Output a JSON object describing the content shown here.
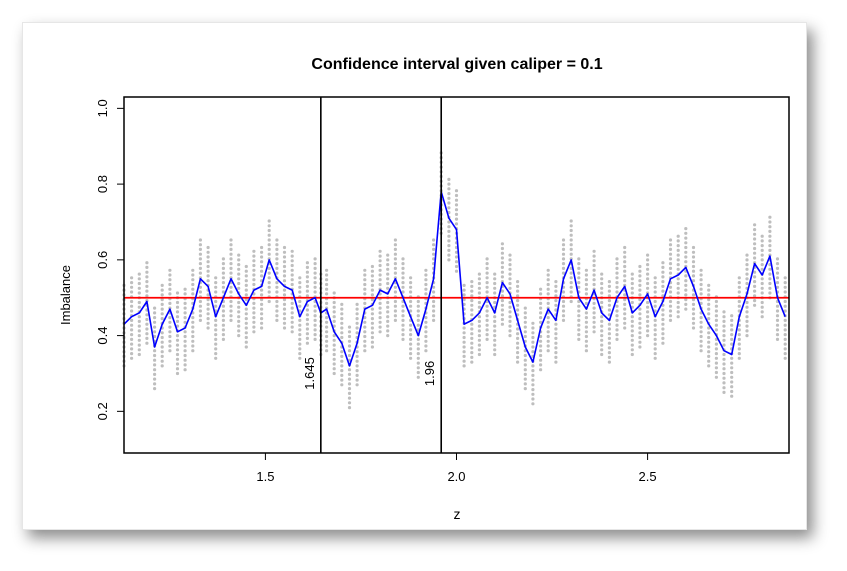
{
  "chart_data": {
    "type": "line",
    "title": "Confidence interval given caliper =  0.1",
    "xlabel": "z",
    "ylabel": "Imbalance",
    "xlim": [
      1.13,
      2.87
    ],
    "ylim": [
      0.09,
      1.03
    ],
    "x_ticks": [
      {
        "value": 1.5,
        "label": "1.5"
      },
      {
        "value": 2.0,
        "label": "2.0"
      },
      {
        "value": 2.5,
        "label": "2.5"
      }
    ],
    "y_ticks": [
      {
        "value": 0.2,
        "label": "0.2"
      },
      {
        "value": 0.4,
        "label": "0.4"
      },
      {
        "value": 0.6,
        "label": "0.6"
      },
      {
        "value": 0.8,
        "label": "0.8"
      },
      {
        "value": 1.0,
        "label": "1.0"
      }
    ],
    "grid": false,
    "reference_line": {
      "y": 0.5,
      "color": "#ff0000"
    },
    "vertical_lines": [
      {
        "x": 1.645,
        "label": "1.645"
      },
      {
        "x": 1.96,
        "label": "1.96"
      }
    ],
    "band_half_width": 0.11,
    "colors": {
      "line": "#0000ff",
      "band_dots": "#bebebe",
      "reference": "#ff0000",
      "axes": "#000000"
    },
    "series": [
      {
        "x": [
          1.13,
          1.15,
          1.17,
          1.19,
          1.21,
          1.23,
          1.25,
          1.27,
          1.29,
          1.31,
          1.33,
          1.35,
          1.37,
          1.39,
          1.41,
          1.43,
          1.45,
          1.47,
          1.49,
          1.51,
          1.53,
          1.55,
          1.57,
          1.59,
          1.61,
          1.63,
          1.645,
          1.66,
          1.68,
          1.7,
          1.72,
          1.74,
          1.76,
          1.78,
          1.8,
          1.82,
          1.84,
          1.86,
          1.88,
          1.9,
          1.92,
          1.94,
          1.96,
          1.98,
          2.0,
          2.02,
          2.04,
          2.06,
          2.08,
          2.1,
          2.12,
          2.14,
          2.16,
          2.18,
          2.2,
          2.22,
          2.24,
          2.26,
          2.28,
          2.3,
          2.32,
          2.34,
          2.36,
          2.38,
          2.4,
          2.42,
          2.44,
          2.46,
          2.48,
          2.5,
          2.52,
          2.54,
          2.56,
          2.58,
          2.6,
          2.62,
          2.64,
          2.66,
          2.68,
          2.7,
          2.72,
          2.74,
          2.76,
          2.78,
          2.8,
          2.82,
          2.84,
          2.86
        ],
        "y": [
          0.43,
          0.45,
          0.46,
          0.49,
          0.37,
          0.43,
          0.47,
          0.41,
          0.42,
          0.47,
          0.55,
          0.53,
          0.45,
          0.5,
          0.55,
          0.51,
          0.48,
          0.52,
          0.53,
          0.6,
          0.55,
          0.53,
          0.52,
          0.45,
          0.49,
          0.5,
          0.46,
          0.47,
          0.41,
          0.38,
          0.32,
          0.38,
          0.47,
          0.48,
          0.52,
          0.51,
          0.55,
          0.5,
          0.45,
          0.4,
          0.47,
          0.55,
          0.78,
          0.71,
          0.68,
          0.43,
          0.44,
          0.46,
          0.5,
          0.46,
          0.54,
          0.51,
          0.44,
          0.37,
          0.33,
          0.42,
          0.47,
          0.44,
          0.55,
          0.6,
          0.5,
          0.47,
          0.52,
          0.46,
          0.44,
          0.5,
          0.53,
          0.46,
          0.48,
          0.51,
          0.45,
          0.49,
          0.55,
          0.56,
          0.58,
          0.53,
          0.47,
          0.43,
          0.4,
          0.36,
          0.35,
          0.45,
          0.51,
          0.59,
          0.56,
          0.61,
          0.5,
          0.45
        ]
      }
    ]
  }
}
